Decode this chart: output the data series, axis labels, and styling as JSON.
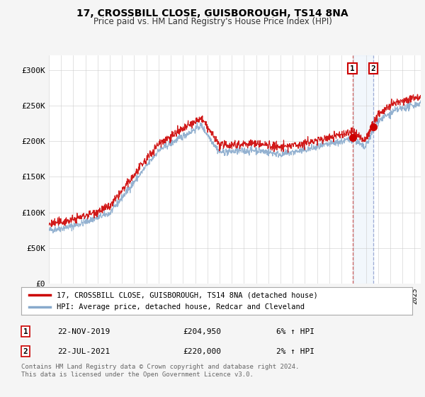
{
  "title": "17, CROSSBILL CLOSE, GUISBOROUGH, TS14 8NA",
  "subtitle": "Price paid vs. HM Land Registry's House Price Index (HPI)",
  "house_color": "#cc0000",
  "hpi_color": "#88aacc",
  "background_color": "#f5f5f5",
  "plot_bg_color": "#ffffff",
  "ylim": [
    0,
    320000
  ],
  "yticks": [
    0,
    50000,
    100000,
    150000,
    200000,
    250000,
    300000
  ],
  "ytick_labels": [
    "£0",
    "£50K",
    "£100K",
    "£150K",
    "£200K",
    "£250K",
    "£300K"
  ],
  "x_start_year": 1995,
  "x_end_year": 2025,
  "legend_house": "17, CROSSBILL CLOSE, GUISBOROUGH, TS14 8NA (detached house)",
  "legend_hpi": "HPI: Average price, detached house, Redcar and Cleveland",
  "sale1_date": "22-NOV-2019",
  "sale1_price": 204950,
  "sale1_pct": "6%",
  "sale1_year": 2019.9,
  "sale2_date": "22-JUL-2021",
  "sale2_price": 220000,
  "sale2_pct": "2%",
  "sale2_year": 2021.6,
  "footnote": "Contains HM Land Registry data © Crown copyright and database right 2024.\nThis data is licensed under the Open Government Licence v3.0."
}
